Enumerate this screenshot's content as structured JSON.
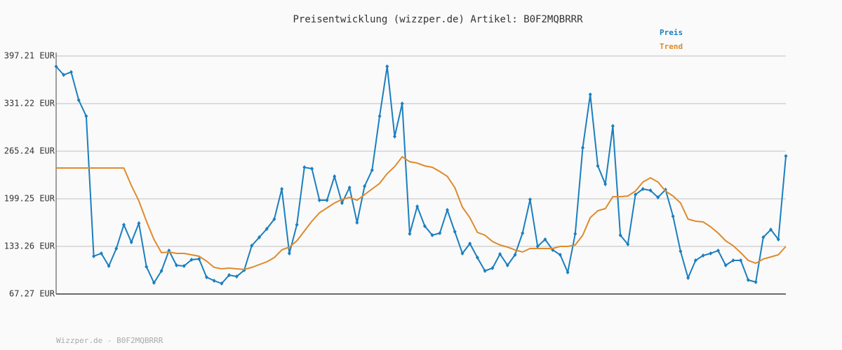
{
  "chart_data": {
    "type": "line",
    "title": "Preisentwicklung (wizzper.de) Artikel: B0F2MQBRRR",
    "footer": "Wizzper.de - B0F2MQBRRR",
    "ylim": [
      67.27,
      397.21
    ],
    "yticks": [
      {
        "value": 67.27,
        "label": "67.27 EUR"
      },
      {
        "value": 133.26,
        "label": "133.26 EUR"
      },
      {
        "value": 199.25,
        "label": "199.25 EUR"
      },
      {
        "value": 265.24,
        "label": "265.24 EUR"
      },
      {
        "value": 331.22,
        "label": "331.22 EUR"
      },
      {
        "value": 397.21,
        "label": "397.21 EUR"
      }
    ],
    "grid": true,
    "legend": "top-right",
    "series": [
      {
        "name": "Preis",
        "color": "#1a7fbf",
        "markers": true,
        "values": [
          382.65,
          371.01,
          374.89,
          336.07,
          313.75,
          119.67,
          123.55,
          106.09,
          130.35,
          163.22,
          139.08,
          165.28,
          105.12,
          82.8,
          99.3,
          127.44,
          107.06,
          106.09,
          114.82,
          115.79,
          90.56,
          85.7,
          81.82,
          93.47,
          91.53,
          100.26,
          134.22,
          145.88,
          157.52,
          171.11,
          212.83,
          123.55,
          163.33,
          242.91,
          240.97,
          197.3,
          197.3,
          230.3,
          193.43,
          214.78,
          166.25,
          216.72,
          239.03,
          313.75,
          382.65,
          285.61,
          331.22,
          150.72,
          188.58,
          161.39,
          148.78,
          151.7,
          183.72,
          153.64,
          123.55,
          137.14,
          117.73,
          99.3,
          103.18,
          122.59,
          107.06,
          121.62,
          151.7,
          198.27,
          133.26,
          142.96,
          128.41,
          121.62,
          97.35,
          150.72,
          270.09,
          343.84,
          244.86,
          219.63,
          300.17,
          148.78,
          136.17,
          205.07,
          212.83,
          210.89,
          201.19,
          211.86,
          175.04,
          126.46,
          89.59,
          113.85,
          120.64,
          123.55,
          127.44,
          107.06,
          113.85,
          113.85,
          86.68,
          83.77,
          145.88,
          156.54,
          142.96,
          258.44
        ]
      },
      {
        "name": "Trend",
        "color": "#df8a2c",
        "markers": false,
        "values": [
          241.94,
          241.94,
          241.94,
          241.94,
          241.94,
          241.94,
          241.94,
          241.94,
          241.94,
          241.94,
          217.68,
          196.33,
          168.19,
          142.96,
          124.52,
          125.5,
          123.55,
          123.55,
          121.61,
          119.67,
          112.88,
          104.14,
          102.2,
          103.18,
          102.2,
          101.23,
          104.14,
          108.02,
          111.9,
          117.73,
          128.4,
          132.28,
          141.02,
          154.61,
          168.19,
          179.83,
          186.62,
          193.42,
          198.27,
          201.18,
          197.3,
          205.07,
          212.83,
          220.59,
          234.18,
          243.88,
          257.47,
          250.67,
          248.73,
          244.86,
          242.91,
          237.09,
          230.3,
          214.78,
          187.6,
          173.05,
          152.67,
          148.78,
          140.05,
          135.2,
          132.28,
          128.4,
          125.5,
          130.35,
          130.35,
          130.35,
          130.35,
          133.26,
          133.26,
          135.2,
          148.78,
          173.05,
          182.75,
          185.66,
          202.16,
          202.16,
          203.13,
          209.92,
          222.54,
          228.36,
          222.54,
          209.92,
          203.13,
          193.42,
          171.11,
          168.19,
          167.22,
          160.43,
          151.7,
          141.02,
          134.23,
          124.52,
          113.85,
          109.97,
          115.79,
          118.7,
          121.61,
          133.26
        ]
      }
    ]
  }
}
